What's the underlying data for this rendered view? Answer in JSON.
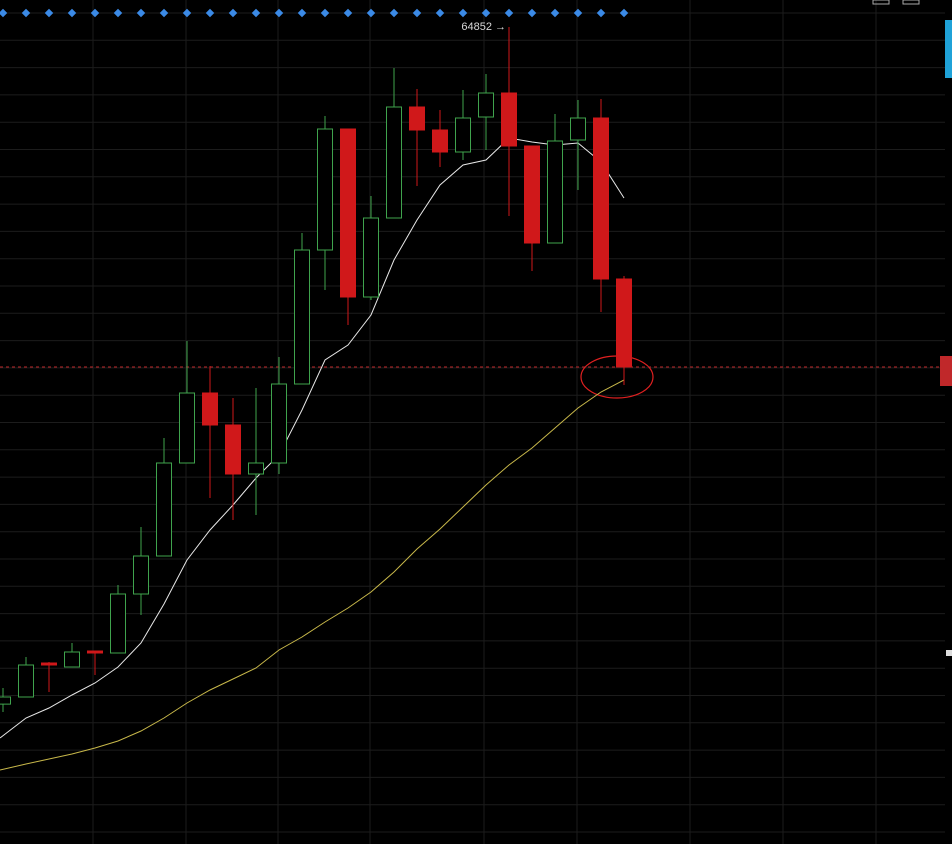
{
  "chart_data": {
    "type": "candlestick",
    "annotation": "64852 →",
    "ylim": [
      24002,
      66202
    ],
    "up_color": "#3fa34d",
    "down_color": "#d0181a",
    "open": [
      30996,
      31352,
      33052,
      32852,
      33652,
      33552,
      36502,
      38402,
      43052,
      46552,
      44952,
      42502,
      43052,
      47002,
      53702,
      59752,
      51352,
      55302,
      60852,
      59702,
      58602,
      60352,
      61552,
      58902,
      54052,
      59202,
      60302,
      52252
    ],
    "high": [
      31802,
      33352,
      33102,
      34052,
      33652,
      36952,
      39852,
      44302,
      49152,
      47902,
      46302,
      46802,
      48352,
      54552,
      60402,
      59752,
      56402,
      62802,
      61752,
      60702,
      61702,
      62502,
      64852,
      58902,
      60502,
      61202,
      61252,
      52402
    ],
    "low": [
      30602,
      31352,
      31602,
      32852,
      32452,
      33552,
      35452,
      38402,
      43052,
      41302,
      40202,
      40452,
      42502,
      47002,
      51702,
      49952,
      51202,
      55302,
      56902,
      57852,
      58202,
      58702,
      55402,
      52652,
      54052,
      56702,
      50602,
      46952
    ],
    "close": [
      31352,
      32952,
      32952,
      33602,
      33552,
      36502,
      38402,
      43052,
      46552,
      44952,
      42502,
      43052,
      47002,
      53702,
      59752,
      51352,
      55302,
      60852,
      59702,
      58602,
      60302,
      61552,
      58902,
      54052,
      59152,
      60302,
      52252,
      47852
    ],
    "lines": [
      {
        "color": "#e8e8e8",
        "values": [
          29302,
          30302,
          30802,
          31452,
          32052,
          32852,
          34052,
          36002,
          38202,
          39702,
          40952,
          42302,
          43452,
          45702,
          48202,
          48952,
          50452,
          53202,
          55202,
          56952,
          57952,
          58202,
          59302,
          59102,
          58952,
          59052,
          58102,
          56302
        ]
      },
      {
        "color": "#c8b84a",
        "values": [
          27702,
          28002,
          28252,
          28502,
          28802,
          29152,
          29652,
          30302,
          31052,
          31702,
          32252,
          32802,
          33702,
          34352,
          35102,
          35802,
          36602,
          37602,
          38752,
          39752,
          40852,
          41952,
          42952,
          43802,
          44802,
          45802,
          46602,
          47202
        ]
      }
    ],
    "price_line": 47852
  }
}
